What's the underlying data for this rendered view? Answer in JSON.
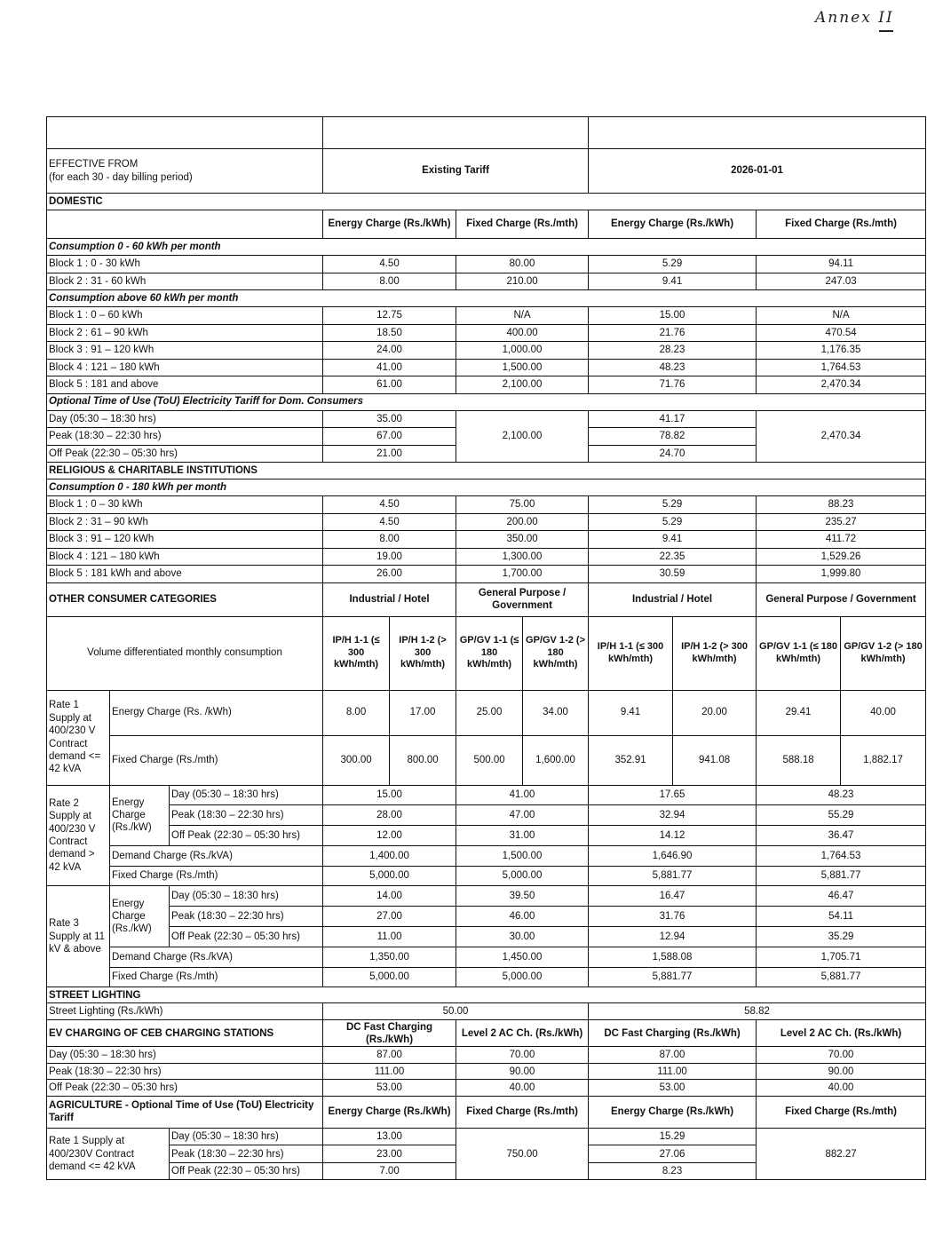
{
  "annex_note": "Annex II",
  "header": {
    "effective_from": "EFFECTIVE FROM",
    "billing_period": "(for each 30 - day billing period)",
    "existing_tariff": "Existing Tariff",
    "new_tariff_date": "2026-01-01"
  },
  "domestic": {
    "title": "DOMESTIC",
    "col_headers": [
      "Energy Charge (Rs./kWh)",
      "Fixed Charge (Rs./mth)",
      "Energy Charge (Rs./kWh)",
      "Fixed Charge (Rs./mth)"
    ],
    "low": {
      "title": "Consumption 0 - 60 kWh per month",
      "rows": [
        {
          "label": "Block 1 : 0 - 30 kWh",
          "values": [
            "4.50",
            "80.00",
            "5.29",
            "94.11"
          ]
        },
        {
          "label": "Block 2 : 31 - 60 kWh",
          "values": [
            "8.00",
            "210.00",
            "9.41",
            "247.03"
          ]
        }
      ]
    },
    "high": {
      "title": "Consumption above 60 kWh per month",
      "rows": [
        {
          "label": "Block 1 : 0 – 60 kWh",
          "values": [
            "12.75",
            "N/A",
            "15.00",
            "N/A"
          ]
        },
        {
          "label": "Block 2 : 61 – 90 kWh",
          "values": [
            "18.50",
            "400.00",
            "21.76",
            "470.54"
          ]
        },
        {
          "label": "Block 3 : 91 – 120 kWh",
          "values": [
            "24.00",
            "1,000.00",
            "28.23",
            "1,176.35"
          ]
        },
        {
          "label": "Block 4 : 121 – 180 kWh",
          "values": [
            "41.00",
            "1,500.00",
            "48.23",
            "1,764.53"
          ]
        },
        {
          "label": "Block 5 : 181 and above",
          "values": [
            "61.00",
            "2,100.00",
            "71.76",
            "2,470.34"
          ]
        }
      ]
    },
    "tou": {
      "title": "Optional Time of Use (ToU) Electricity Tariff for Dom. Consumers",
      "rows": [
        {
          "label": "Day (05:30 – 18:30 hrs)",
          "existing_energy": "35.00",
          "new_energy": "41.17"
        },
        {
          "label": "Peak (18:30 – 22:30 hrs)",
          "existing_energy": "67.00",
          "new_energy": "78.82"
        },
        {
          "label": "Off Peak (22:30 – 05:30 hrs)",
          "existing_energy": "21.00",
          "new_energy": "24.70"
        }
      ],
      "existing_fixed": "2,100.00",
      "new_fixed": "2,470.34"
    }
  },
  "religious": {
    "title": "RELIGIOUS & CHARITABLE INSTITUTIONS",
    "subtitle": "Consumption 0 - 180 kWh per month",
    "rows": [
      {
        "label": "Block 1 : 0 – 30 kWh",
        "values": [
          "4.50",
          "75.00",
          "5.29",
          "88.23"
        ]
      },
      {
        "label": "Block 2 : 31 – 90 kWh",
        "values": [
          "4.50",
          "200.00",
          "5.29",
          "235.27"
        ]
      },
      {
        "label": "Block 3 : 91 – 120 kWh",
        "values": [
          "8.00",
          "350.00",
          "9.41",
          "411.72"
        ]
      },
      {
        "label": "Block 4 : 121 – 180 kWh",
        "values": [
          "19.00",
          "1,300.00",
          "22.35",
          "1,529.26"
        ]
      },
      {
        "label": "Block 5 : 181 kWh and above",
        "values": [
          "26.00",
          "1,700.00",
          "30.59",
          "1,999.80"
        ]
      }
    ]
  },
  "other": {
    "title": "OTHER CONSUMER CATEGORIES",
    "groups": [
      "Industrial / Hotel",
      "General Purpose / Government",
      "Industrial / Hotel",
      "General Purpose /  Government"
    ],
    "volume_label": "Volume differentiated monthly consumption",
    "subcategories": [
      "IP/H 1-1 (≤ 300 kWh/mth)",
      "IP/H 1-2 (> 300 kWh/mth)",
      "GP/GV 1-1 (≤ 180 kWh/mth)",
      "GP/GV 1-2 (> 180 kWh/mth)",
      "IP/H 1-1 (≤ 300 kWh/mth)",
      "IP/H 1-2 (> 300 kWh/mth)",
      "GP/GV 1-1 (≤ 180 kWh/mth)",
      "GP/GV 1-2 (> 180 kWh/mth)"
    ],
    "rate1": {
      "label": "Rate 1 Supply at 400/230 V Contract demand <= 42 kVA",
      "energy_label": "Energy Charge (Rs. /kWh)",
      "energy": [
        "8.00",
        "17.00",
        "25.00",
        "34.00",
        "9.41",
        "20.00",
        "29.41",
        "40.00"
      ],
      "fixed_label": "Fixed Charge (Rs./mth)",
      "fixed": [
        "300.00",
        "800.00",
        "500.00",
        "1,600.00",
        "352.91",
        "941.08",
        "588.18",
        "1,882.17"
      ]
    },
    "rate2": {
      "label": "Rate 2 Supply at 400/230 V Contract demand > 42 kVA",
      "energy_label": "Energy Charge (Rs./kW)",
      "tou": [
        {
          "label": "Day (05:30 – 18:30 hrs)",
          "values": [
            "15.00",
            "41.00",
            "17.65",
            "48.23"
          ]
        },
        {
          "label": "Peak (18:30 – 22:30 hrs)",
          "values": [
            "28.00",
            "47.00",
            "32.94",
            "55.29"
          ]
        },
        {
          "label": "Off Peak (22:30 – 05:30 hrs)",
          "values": [
            "12.00",
            "31.00",
            "14.12",
            "36.47"
          ]
        }
      ],
      "demand_label": "Demand Charge (Rs./kVA)",
      "demand": [
        "1,400.00",
        "1,500.00",
        "1,646.90",
        "1,764.53"
      ],
      "fixed_label": "Fixed Charge (Rs./mth)",
      "fixed": [
        "5,000.00",
        "5,000.00",
        "5,881.77",
        "5,881.77"
      ]
    },
    "rate3": {
      "label": "Rate 3 Supply at 11 kV & above",
      "energy_label": "Energy Charge (Rs./kW)",
      "tou": [
        {
          "label": "Day (05:30 – 18:30 hrs)",
          "values": [
            "14.00",
            "39.50",
            "16.47",
            "46.47"
          ]
        },
        {
          "label": "Peak (18:30 – 22:30 hrs)",
          "values": [
            "27.00",
            "46.00",
            "31.76",
            "54.11"
          ]
        },
        {
          "label": "Off Peak (22:30 – 05:30 hrs)",
          "values": [
            "11.00",
            "30.00",
            "12.94",
            "35.29"
          ]
        }
      ],
      "demand_label": "Demand Charge (Rs./kVA)",
      "demand": [
        "1,350.00",
        "1,450.00",
        "1,588.08",
        "1,705.71"
      ],
      "fixed_label": "Fixed Charge (Rs./mth)",
      "fixed": [
        "5,000.00",
        "5,000.00",
        "5,881.77",
        "5,881.77"
      ]
    }
  },
  "street": {
    "title": "STREET LIGHTING",
    "label": "Street Lighting (Rs./kWh)",
    "existing": "50.00",
    "new": "58.82"
  },
  "ev": {
    "title": "EV CHARGING OF CEB CHARGING STATIONS",
    "col_headers": [
      "DC Fast Charging (Rs./kWh)",
      "Level 2 AC Ch. (Rs./kWh)",
      "DC Fast Charging (Rs./kWh)",
      "Level 2 AC Ch. (Rs./kWh)"
    ],
    "rows": [
      {
        "label": "Day (05:30 – 18:30 hrs)",
        "values": [
          "87.00",
          "70.00",
          "87.00",
          "70.00"
        ]
      },
      {
        "label": "Peak (18:30 – 22:30 hrs)",
        "values": [
          "111.00",
          "90.00",
          "111.00",
          "90.00"
        ]
      },
      {
        "label": "Off Peak (22:30 – 05:30 hrs)",
        "values": [
          "53.00",
          "40.00",
          "53.00",
          "40.00"
        ]
      }
    ]
  },
  "agriculture": {
    "title": "AGRICULTURE - Optional Time of Use (ToU) Electricity Tariff",
    "col_headers": [
      "Energy Charge (Rs./kWh)",
      "Fixed Charge (Rs./mth)",
      "Energy Charge (Rs./kWh)",
      "Fixed Charge (Rs./mth)"
    ],
    "rate_label": "Rate 1 Supply at 400/230V Contract demand <= 42 kVA",
    "rows": [
      {
        "label": "Day (05:30 – 18:30 hrs)",
        "existing_energy": "13.00",
        "new_energy": "15.29"
      },
      {
        "label": "Peak (18:30 – 22:30 hrs)",
        "existing_energy": "23.00",
        "new_energy": "27.06"
      },
      {
        "label": "Off Peak (22:30 – 05:30 hrs)",
        "existing_energy": "7.00",
        "new_energy": "8.23"
      }
    ],
    "existing_fixed": "750.00",
    "new_fixed": "882.27"
  }
}
